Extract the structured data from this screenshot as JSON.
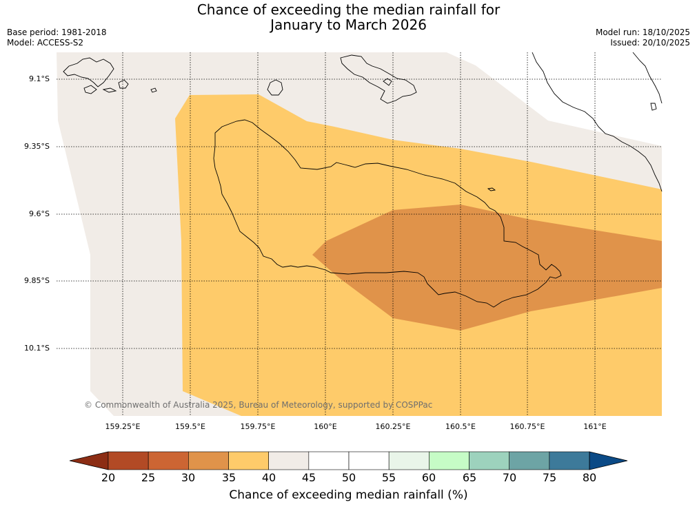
{
  "title": {
    "line1": "Chance of exceeding the median rainfall for",
    "line2": "January to March 2026"
  },
  "meta_left": {
    "base_period": "Base period: 1981-2018",
    "model": "Model: ACCESS-S2"
  },
  "meta_right": {
    "model_run": "Model run: 18/10/2025",
    "issued": "Issued: 20/10/2025"
  },
  "map": {
    "lat_labels": [
      "9.1°S",
      "9.35°S",
      "9.6°S",
      "9.85°S",
      "10.1°S"
    ],
    "lon_labels": [
      "159.25°E",
      "159.5°E",
      "159.75°E",
      "160°E",
      "160.25°E",
      "160.5°E",
      "160.75°E",
      "161°E"
    ],
    "copyright": "© Commonwealth of Australia 2025, Bureau of Meteorology, supported by COSPPac"
  },
  "colorbar": {
    "labels": [
      "20",
      "25",
      "30",
      "35",
      "40",
      "45",
      "50",
      "55",
      "60",
      "65",
      "70",
      "75",
      "80"
    ],
    "colors": [
      "#8c2d14",
      "#b24a25",
      "#cc6533",
      "#e0934a",
      "#fecb6a",
      "#f1ece7",
      "#ffffff",
      "#ffffff",
      "#e9f5e9",
      "#c6fcc6",
      "#9dd2bd",
      "#6da4a5",
      "#3d7a9a",
      "#0b4a86"
    ],
    "title": "Chance of exceeding median rainfall (%)"
  }
}
